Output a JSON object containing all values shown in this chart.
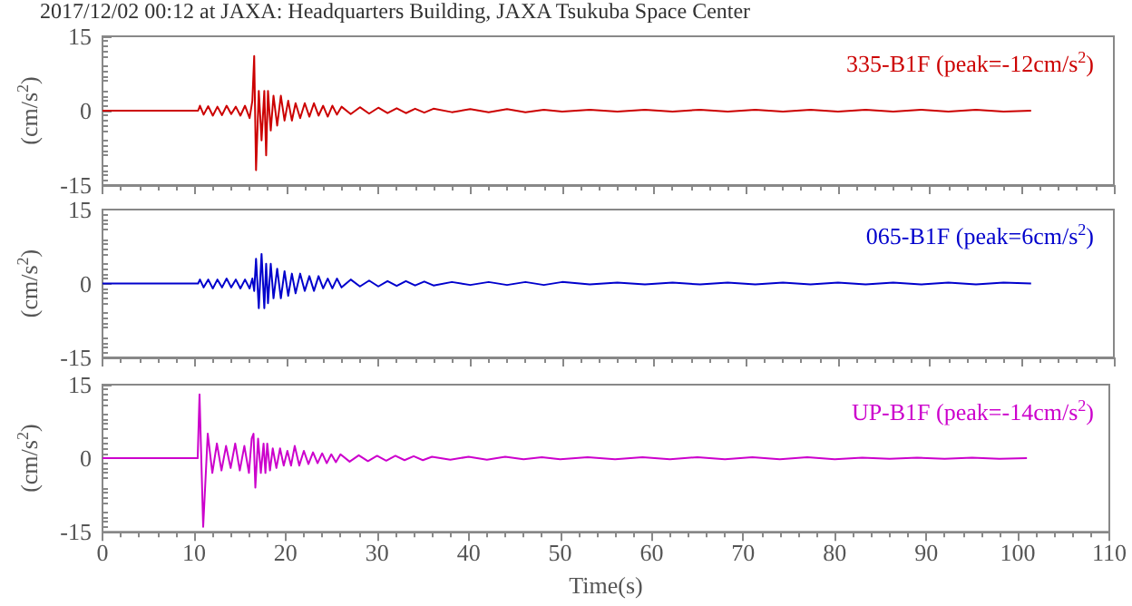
{
  "chart_data": [
    {
      "type": "line",
      "title": "2017/12/02 00:12 at JAXA: Headquarters Building, JAXA Tsukuba Space Center",
      "ylabel": "(cm/s$^{2}$)",
      "xlim": [
        0,
        110
      ],
      "xticks": [
        0,
        10,
        20,
        30,
        40,
        50,
        60,
        70,
        80,
        90,
        100,
        110
      ],
      "ylim": [
        -15,
        15
      ],
      "yticks": [
        -15,
        0,
        15
      ],
      "tick_labels": "y",
      "grid": false,
      "x": [
        0,
        10.4,
        10.6,
        11,
        11.5,
        12,
        12.5,
        13,
        13.5,
        14,
        14.5,
        15,
        15.5,
        16,
        16.3,
        16.5,
        16.7,
        17,
        17.3,
        17.6,
        17.8,
        18,
        18.3,
        18.6,
        19,
        19.4,
        19.8,
        20.2,
        20.6,
        21,
        21.5,
        22,
        22.5,
        23,
        23.5,
        24,
        24.5,
        25,
        25.5,
        26,
        27,
        28,
        29,
        30,
        31,
        32,
        33,
        34,
        35,
        36,
        38,
        40,
        42,
        44,
        46,
        48,
        50,
        53,
        56,
        59,
        62,
        65,
        68,
        71,
        74,
        77,
        80,
        83,
        86,
        89,
        92,
        95,
        98,
        101
      ],
      "series": [
        {
          "name": "335-B1F (peak=-12cm/s$^{2}$)",
          "color": "#cc0000",
          "values": [
            0,
            0,
            1,
            -0.8,
            0.9,
            -1,
            0.8,
            -0.9,
            1,
            -0.7,
            0.8,
            -1,
            1,
            -1.5,
            2,
            11,
            -12,
            4,
            -6,
            4,
            -9,
            4,
            -4,
            3,
            -3,
            3,
            -2,
            2,
            -2,
            1.5,
            -1.5,
            1.5,
            -1.2,
            1.5,
            -1,
            1,
            -1.2,
            1,
            -0.8,
            0.8,
            -0.7,
            0.7,
            -0.6,
            0.6,
            -0.5,
            0.5,
            -0.5,
            0.4,
            -0.4,
            0.4,
            -0.3,
            0.3,
            -0.3,
            0.3,
            -0.3,
            0.2,
            -0.2,
            0.2,
            -0.2,
            0.2,
            -0.2,
            0.2,
            -0.2,
            0.2,
            -0.2,
            0.2,
            -0.2,
            0.2,
            -0.2,
            0.2,
            -0.2,
            0.2,
            -0.2,
            0
          ]
        }
      ]
    },
    {
      "type": "line",
      "ylabel": "(cm/s$^{2}$)",
      "xlim": [
        0,
        110
      ],
      "xticks": [
        0,
        10,
        20,
        30,
        40,
        50,
        60,
        70,
        80,
        90,
        100,
        110
      ],
      "ylim": [
        -15,
        15
      ],
      "yticks": [
        -15,
        0,
        15
      ],
      "tick_labels": "y",
      "grid": false,
      "x": [
        0,
        10.4,
        10.6,
        11,
        11.5,
        12,
        12.5,
        13,
        13.5,
        14,
        14.5,
        15,
        15.5,
        16,
        16.3,
        16.5,
        16.7,
        17,
        17.3,
        17.6,
        17.8,
        18,
        18.3,
        18.6,
        19,
        19.4,
        19.8,
        20.2,
        20.6,
        21,
        21.5,
        22,
        22.5,
        23,
        23.5,
        24,
        24.5,
        25,
        25.5,
        26,
        27,
        28,
        29,
        30,
        31,
        32,
        33,
        34,
        35,
        36,
        38,
        40,
        42,
        44,
        46,
        48,
        50,
        53,
        56,
        59,
        62,
        65,
        68,
        71,
        74,
        77,
        80,
        83,
        86,
        89,
        92,
        95,
        98,
        101
      ],
      "series": [
        {
          "name": "065-B1F (peak=6cm/s$^{2}$)",
          "color": "#0000cc",
          "values": [
            0,
            0,
            0.8,
            -0.8,
            0.8,
            -1,
            0.8,
            -0.8,
            1,
            -0.8,
            0.8,
            -1,
            0.8,
            -1,
            1,
            -1.5,
            5,
            -5,
            6,
            -5,
            4,
            -4,
            4,
            -3,
            3,
            -3,
            2.5,
            -2.5,
            2,
            -2,
            2,
            -1.5,
            1.5,
            -1.5,
            1.5,
            -1,
            1,
            -1,
            1,
            -0.8,
            0.8,
            -0.6,
            0.6,
            -0.6,
            0.5,
            -0.5,
            0.5,
            -0.4,
            0.4,
            -0.4,
            0.3,
            -0.3,
            0.3,
            -0.3,
            0.3,
            -0.3,
            0.3,
            -0.2,
            0.2,
            -0.2,
            0.2,
            -0.2,
            0.2,
            -0.2,
            0.2,
            -0.2,
            0.2,
            -0.2,
            0.2,
            -0.2,
            0.2,
            -0.2,
            0.2,
            0
          ]
        }
      ]
    },
    {
      "type": "line",
      "xlabel": "Time(s)",
      "ylabel": "(cm/s$^{2}$)",
      "xlim": [
        0,
        110
      ],
      "xticks": [
        0,
        10,
        20,
        30,
        40,
        50,
        60,
        70,
        80,
        90,
        100,
        110
      ],
      "ylim": [
        -15,
        15
      ],
      "yticks": [
        -15,
        0,
        15
      ],
      "grid": false,
      "x": [
        0,
        10.4,
        10.6,
        11,
        11.5,
        12,
        12.5,
        13,
        13.5,
        14,
        14.5,
        15,
        15.5,
        16,
        16.3,
        16.5,
        16.7,
        17,
        17.3,
        17.6,
        17.8,
        18,
        18.3,
        18.6,
        19,
        19.4,
        19.8,
        20.2,
        20.6,
        21,
        21.5,
        22,
        22.5,
        23,
        23.5,
        24,
        24.5,
        25,
        25.5,
        26,
        27,
        28,
        29,
        30,
        31,
        32,
        33,
        34,
        35,
        36,
        38,
        40,
        42,
        44,
        46,
        48,
        50,
        53,
        56,
        59,
        62,
        65,
        68,
        71,
        74,
        77,
        80,
        83,
        86,
        89,
        92,
        95,
        98,
        101
      ],
      "series": [
        {
          "name": "UP-B1F (peak=-14cm/s$^{2}$)",
          "color": "#cc00cc",
          "values": [
            0,
            0,
            13,
            -14,
            5,
            -3,
            3,
            -2.5,
            2.5,
            -2,
            3,
            -2.5,
            2.5,
            -3,
            4,
            5,
            -6,
            4,
            -3,
            3,
            -3,
            3,
            -2.5,
            2,
            -2,
            2,
            -1.5,
            1.5,
            -1.5,
            2.5,
            -1.5,
            1.5,
            -1.2,
            1.2,
            -1,
            1,
            -1,
            0.8,
            -0.8,
            0.8,
            -0.7,
            0.6,
            -0.6,
            0.5,
            -0.5,
            0.5,
            -0.4,
            0.4,
            -0.4,
            0.3,
            -0.3,
            0.3,
            -0.3,
            0.3,
            -0.2,
            0.2,
            -0.2,
            0.2,
            -0.2,
            0.2,
            -0.2,
            0.2,
            -0.2,
            0.2,
            -0.2,
            0.2,
            -0.2,
            0.1,
            -0.1,
            0.1,
            -0.1,
            0.1,
            -0.1,
            0
          ]
        }
      ]
    }
  ]
}
